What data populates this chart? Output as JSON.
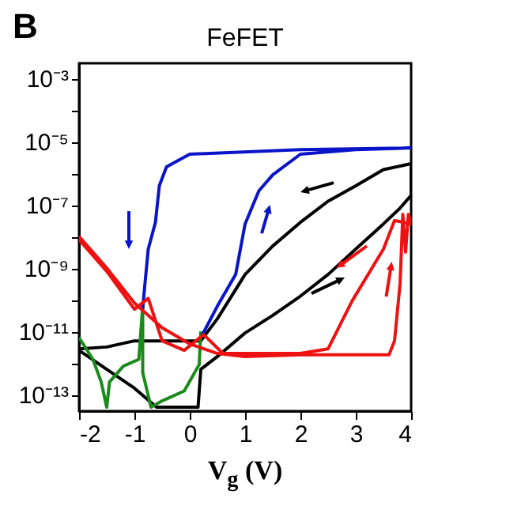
{
  "chart_data": {
    "type": "line",
    "title": "FeFET",
    "xlabel": "V$_{g}$ (V)",
    "annotations": [
      "B"
    ],
    "log": "y",
    "grid": false,
    "legend": false,
    "marker": "none",
    "line_style": "solid",
    "xlim": [
      -2,
      4
    ],
    "xticks": [
      -2,
      -1,
      0,
      1,
      2,
      3,
      4
    ],
    "ylim": [
      3e-14,
      0.003
    ],
    "yticks": [
      {
        "value": 0.001,
        "label": "10⁻³"
      },
      {
        "value": 0.0001,
        "label": null
      },
      {
        "value": 1e-05,
        "label": "10⁻⁵"
      },
      {
        "value": 1e-06,
        "label": null
      },
      {
        "value": 1e-07,
        "label": "10⁻⁷"
      },
      {
        "value": 1e-08,
        "label": null
      },
      {
        "value": 1e-09,
        "label": "10⁻⁹"
      },
      {
        "value": 1e-10,
        "label": null
      },
      {
        "value": 1e-11,
        "label": "10⁻¹¹"
      },
      {
        "value": 1e-12,
        "label": null
      },
      {
        "value": 1e-13,
        "label": "10⁻¹³"
      }
    ],
    "series": [
      {
        "color": "#000000",
        "x": [
          -2,
          -1.5,
          -1,
          -0.6,
          0.15,
          0.2,
          0.5,
          1,
          1.5,
          2,
          2.5,
          3,
          3.5,
          3.8,
          4,
          4,
          3.5,
          3,
          2.5,
          2,
          1.5,
          1,
          0.5,
          0.2,
          -0.5,
          -1,
          -1.5,
          -2
        ],
        "values": [
          2.5e-12,
          6.3e-13,
          1.6e-13,
          4e-14,
          4e-14,
          6.3e-13,
          1.6e-12,
          8.9e-12,
          3.2e-11,
          1.3e-10,
          6.3e-10,
          4e-09,
          2.5e-08,
          7.9e-08,
          2e-07,
          2e-06,
          1.3e-06,
          4e-07,
          1.3e-07,
          2.8e-08,
          5e-09,
          6.3e-10,
          2.5e-11,
          5e-12,
          5e-12,
          5e-12,
          3.2e-12,
          2.8e-12
        ]
      },
      {
        "color": "#1a8a1a",
        "x": [
          -2,
          -1.75,
          -1.6,
          -1.5,
          -1.45,
          -1.2,
          -0.92,
          -0.85,
          -0.85,
          -0.7,
          -0.5,
          -0.1,
          0.17,
          0.2
        ],
        "values": [
          6.3e-12,
          1.3e-12,
          2.5e-13,
          4e-14,
          2.5e-13,
          7.9e-13,
          1.3e-12,
          6.3e-11,
          5e-13,
          4e-14,
          6.3e-14,
          1.3e-13,
          8.9e-13,
          1e-11
        ]
      },
      {
        "color": "#0a14c8",
        "x": [
          0.2,
          0.5,
          0.83,
          1,
          1.25,
          1.5,
          2,
          3,
          4,
          2,
          0,
          -0.42,
          -0.55,
          -0.62,
          -0.75,
          -0.83,
          -0.85
        ],
        "values": [
          6.3e-12,
          6.3e-11,
          6.3e-10,
          2.5e-08,
          2.8e-07,
          8.9e-07,
          4e-06,
          5.6e-06,
          6.3e-06,
          5.6e-06,
          4e-06,
          1.6e-06,
          4e-07,
          2.8e-08,
          4e-09,
          1.3e-10,
          5e-11
        ]
      },
      {
        "color": "#ee1111",
        "x": [
          -2,
          -1.5,
          -1,
          -0.5,
          0,
          0.5,
          1,
          2,
          3,
          3.6,
          3.7,
          3.8,
          3.85,
          3.9,
          3.95,
          4,
          3.7,
          3.5,
          2.93,
          2.5,
          2,
          1,
          0.6,
          0.25,
          -0.1,
          -0.5,
          -0.75,
          -1,
          -1.5,
          -2
        ],
        "values": [
          1e-08,
          1e-09,
          7.9e-11,
          1.3e-11,
          4e-12,
          2e-12,
          1.6e-12,
          1.8e-12,
          1.8e-12,
          1.8e-12,
          5e-12,
          3.2e-10,
          5e-08,
          3.2e-09,
          5e-08,
          2.5e-08,
          3.2e-08,
          4e-09,
          8.9e-11,
          2.8e-12,
          2e-12,
          2e-12,
          2e-12,
          7.9e-12,
          2.5e-12,
          5e-12,
          1.1e-10,
          5e-11,
          7.9e-10,
          7.9e-09
        ]
      }
    ]
  }
}
